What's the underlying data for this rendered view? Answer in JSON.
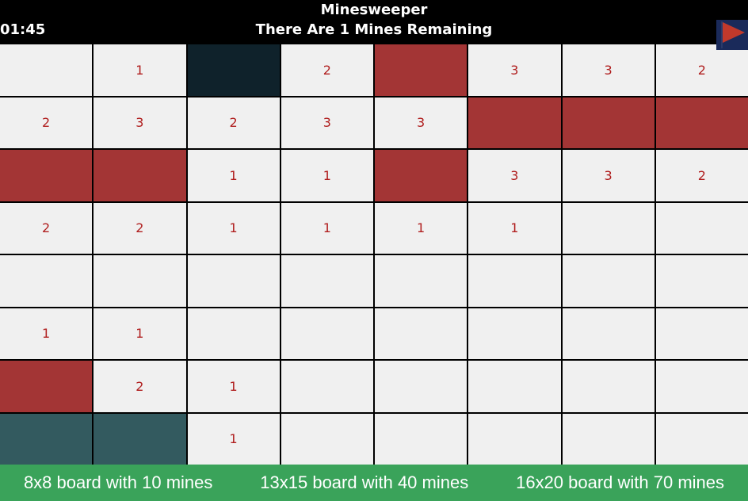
{
  "header": {
    "title": "Minesweeper",
    "status": "There Are 1 Mines Remaining",
    "timer": "01:45",
    "flag_icon": "flag-icon",
    "flag_color": "#c0392b"
  },
  "colors": {
    "revealed": "#f0f0f0",
    "flagged": "#a33535",
    "unrevealed_dark": "#0f222b",
    "unrevealed_teal": "#335a5f",
    "number": "#b01e1e",
    "footer": "#3aa35a"
  },
  "board": {
    "rows": 8,
    "cols": 8,
    "cells": [
      [
        {
          "s": "open",
          "v": ""
        },
        {
          "s": "open",
          "v": "1"
        },
        {
          "s": "dark",
          "v": ""
        },
        {
          "s": "open",
          "v": "2"
        },
        {
          "s": "flag",
          "v": ""
        },
        {
          "s": "open",
          "v": "3"
        },
        {
          "s": "open",
          "v": "3"
        },
        {
          "s": "open",
          "v": "2"
        }
      ],
      [
        {
          "s": "open",
          "v": "2"
        },
        {
          "s": "open",
          "v": "3"
        },
        {
          "s": "open",
          "v": "2"
        },
        {
          "s": "open",
          "v": "3"
        },
        {
          "s": "open",
          "v": "3"
        },
        {
          "s": "flag",
          "v": ""
        },
        {
          "s": "flag",
          "v": ""
        },
        {
          "s": "flag",
          "v": ""
        }
      ],
      [
        {
          "s": "flag",
          "v": ""
        },
        {
          "s": "flag",
          "v": ""
        },
        {
          "s": "open",
          "v": "1"
        },
        {
          "s": "open",
          "v": "1"
        },
        {
          "s": "flag",
          "v": ""
        },
        {
          "s": "open",
          "v": "3"
        },
        {
          "s": "open",
          "v": "3"
        },
        {
          "s": "open",
          "v": "2"
        }
      ],
      [
        {
          "s": "open",
          "v": "2"
        },
        {
          "s": "open",
          "v": "2"
        },
        {
          "s": "open",
          "v": "1"
        },
        {
          "s": "open",
          "v": "1"
        },
        {
          "s": "open",
          "v": "1"
        },
        {
          "s": "open",
          "v": "1"
        },
        {
          "s": "open",
          "v": ""
        },
        {
          "s": "open",
          "v": ""
        }
      ],
      [
        {
          "s": "open",
          "v": ""
        },
        {
          "s": "open",
          "v": ""
        },
        {
          "s": "open",
          "v": ""
        },
        {
          "s": "open",
          "v": ""
        },
        {
          "s": "open",
          "v": ""
        },
        {
          "s": "open",
          "v": ""
        },
        {
          "s": "open",
          "v": ""
        },
        {
          "s": "open",
          "v": ""
        }
      ],
      [
        {
          "s": "open",
          "v": "1"
        },
        {
          "s": "open",
          "v": "1"
        },
        {
          "s": "open",
          "v": ""
        },
        {
          "s": "open",
          "v": ""
        },
        {
          "s": "open",
          "v": ""
        },
        {
          "s": "open",
          "v": ""
        },
        {
          "s": "open",
          "v": ""
        },
        {
          "s": "open",
          "v": ""
        }
      ],
      [
        {
          "s": "flag",
          "v": ""
        },
        {
          "s": "open",
          "v": "2"
        },
        {
          "s": "open",
          "v": "1"
        },
        {
          "s": "open",
          "v": ""
        },
        {
          "s": "open",
          "v": ""
        },
        {
          "s": "open",
          "v": ""
        },
        {
          "s": "open",
          "v": ""
        },
        {
          "s": "open",
          "v": ""
        }
      ],
      [
        {
          "s": "teal",
          "v": ""
        },
        {
          "s": "teal",
          "v": ""
        },
        {
          "s": "open",
          "v": "1"
        },
        {
          "s": "open",
          "v": ""
        },
        {
          "s": "open",
          "v": ""
        },
        {
          "s": "open",
          "v": ""
        },
        {
          "s": "open",
          "v": ""
        },
        {
          "s": "open",
          "v": ""
        }
      ]
    ]
  },
  "footer": {
    "presets": [
      {
        "label": "8x8 board with 10 mines"
      },
      {
        "label": "13x15 board with 40 mines"
      },
      {
        "label": "16x20 board with 70 mines"
      }
    ]
  }
}
